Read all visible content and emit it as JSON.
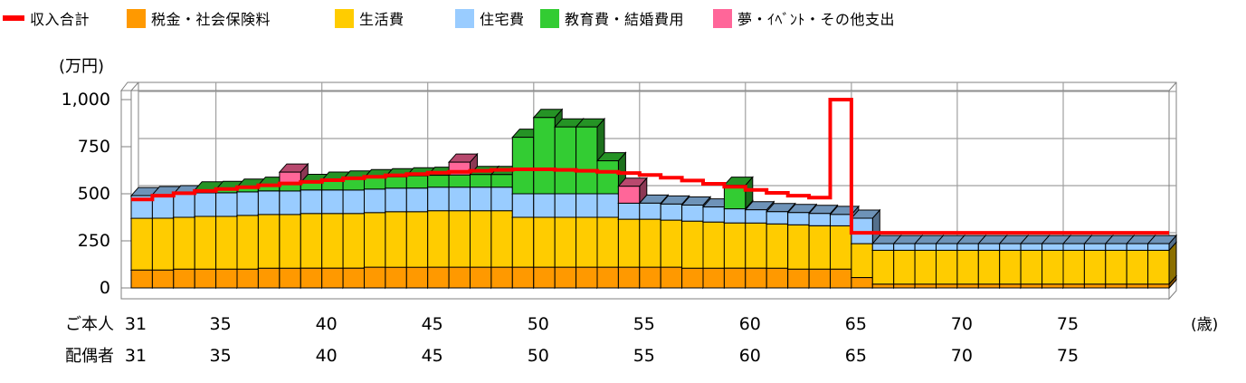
{
  "legend": {
    "items": [
      {
        "key": "income",
        "label": "収入合計",
        "marker": "line",
        "color": "#FF0000",
        "x": 3
      },
      {
        "key": "tax",
        "label": "税金・社会保険料",
        "marker": "square",
        "color": "#FF9900",
        "x": 140
      },
      {
        "key": "living",
        "label": "生活費",
        "marker": "square",
        "color": "#FFCC00",
        "x": 370
      },
      {
        "key": "housing",
        "label": "住宅費",
        "marker": "square",
        "color": "#99CCFF",
        "x": 503
      },
      {
        "key": "education",
        "label": "教育費・結婚費用",
        "marker": "square",
        "color": "#33CC33",
        "x": 597
      },
      {
        "key": "event",
        "label": "夢・ｲﾍﾞﾝﾄ・その他支出",
        "marker": "square",
        "color": "#FF6699",
        "x": 788
      }
    ]
  },
  "chart_data": {
    "type": "bar",
    "subtype": "3d-stacked-column-with-step-line",
    "title": "",
    "unit_label": "(万円)",
    "age_unit_label": "(歳)",
    "ylim": [
      0,
      1000
    ],
    "grid": true,
    "grid_age_step": 5,
    "y_ticks": [
      {
        "value": 1000,
        "label": "1,000"
      },
      {
        "value": 750,
        "label": "750"
      },
      {
        "value": 500,
        "label": "500"
      },
      {
        "value": 250,
        "label": "250"
      },
      {
        "value": 0,
        "label": "0"
      }
    ],
    "x": [
      31,
      32,
      33,
      34,
      35,
      36,
      37,
      38,
      39,
      40,
      41,
      42,
      43,
      44,
      45,
      46,
      47,
      48,
      49,
      50,
      51,
      52,
      53,
      54,
      55,
      56,
      57,
      58,
      59,
      60,
      61,
      62,
      63,
      64,
      65,
      66,
      67,
      68,
      69,
      70,
      71,
      72,
      73,
      74,
      75,
      76,
      77,
      78,
      79
    ],
    "x_axis_rows": [
      {
        "key": "self",
        "label": "ご本人",
        "ticks": [
          "31",
          "35",
          "40",
          "45",
          "50",
          "55",
          "60",
          "65",
          "70",
          "75"
        ],
        "tick_ages": [
          31,
          35,
          40,
          45,
          50,
          55,
          60,
          65,
          70,
          75
        ]
      },
      {
        "key": "spouse",
        "label": "配偶者",
        "ticks": [
          "31",
          "35",
          "40",
          "45",
          "50",
          "55",
          "60",
          "65",
          "70",
          "75"
        ],
        "tick_ages": [
          31,
          35,
          40,
          45,
          50,
          55,
          60,
          65,
          70,
          75
        ]
      }
    ],
    "series": [
      {
        "key": "tax",
        "name": "税金・社会保険料",
        "color": "#FF9900",
        "values": [
          95,
          95,
          100,
          100,
          100,
          100,
          105,
          105,
          105,
          105,
          105,
          110,
          110,
          110,
          110,
          110,
          110,
          110,
          110,
          110,
          110,
          110,
          110,
          110,
          110,
          110,
          105,
          105,
          105,
          105,
          105,
          100,
          100,
          100,
          55,
          20,
          20,
          20,
          20,
          20,
          20,
          20,
          20,
          20,
          20,
          20,
          20,
          20,
          20
        ]
      },
      {
        "key": "living",
        "name": "生活費",
        "color": "#FFCC00",
        "values": [
          275,
          275,
          275,
          280,
          280,
          285,
          285,
          285,
          290,
          290,
          290,
          290,
          295,
          295,
          300,
          300,
          300,
          300,
          265,
          265,
          265,
          265,
          265,
          255,
          255,
          250,
          250,
          245,
          240,
          240,
          235,
          235,
          230,
          230,
          180,
          180,
          180,
          180,
          180,
          180,
          180,
          180,
          180,
          180,
          180,
          180,
          180,
          180,
          180
        ]
      },
      {
        "key": "housing",
        "name": "住宅費",
        "color": "#99CCFF",
        "values": [
          120,
          125,
          125,
          125,
          125,
          125,
          125,
          125,
          125,
          125,
          125,
          125,
          125,
          125,
          125,
          125,
          125,
          125,
          125,
          125,
          125,
          125,
          125,
          85,
          85,
          85,
          85,
          80,
          75,
          70,
          65,
          65,
          65,
          60,
          135,
          35,
          35,
          35,
          35,
          35,
          35,
          35,
          35,
          35,
          35,
          35,
          35,
          35,
          35
        ]
      },
      {
        "key": "education",
        "name": "教育費・結婚費用",
        "color": "#33CC33",
        "values": [
          0,
          0,
          0,
          15,
          18,
          25,
          30,
          33,
          40,
          52,
          58,
          60,
          60,
          65,
          63,
          65,
          67,
          67,
          300,
          405,
          355,
          355,
          175,
          0,
          0,
          0,
          0,
          0,
          125,
          0,
          0,
          0,
          0,
          0,
          0,
          0,
          0,
          0,
          0,
          0,
          0,
          0,
          0,
          0,
          0,
          0,
          0,
          0,
          0
        ]
      },
      {
        "key": "event",
        "name": "夢・ｲﾍﾞﾝﾄ・その他支出",
        "color": "#FF6699",
        "values": [
          0,
          0,
          0,
          0,
          0,
          0,
          0,
          67,
          0,
          0,
          0,
          0,
          0,
          0,
          0,
          68,
          0,
          0,
          0,
          0,
          0,
          0,
          0,
          90,
          0,
          0,
          0,
          0,
          0,
          0,
          0,
          0,
          0,
          0,
          0,
          0,
          0,
          0,
          0,
          0,
          0,
          0,
          0,
          0,
          0,
          0,
          0,
          0,
          0
        ]
      }
    ],
    "line_series": {
      "key": "income",
      "name": "収入合計",
      "color": "#FF0000",
      "values": [
        470,
        490,
        503,
        515,
        525,
        535,
        545,
        555,
        563,
        572,
        582,
        590,
        598,
        605,
        612,
        617,
        622,
        627,
        630,
        630,
        627,
        622,
        617,
        610,
        600,
        585,
        570,
        553,
        537,
        520,
        505,
        490,
        480,
        1000,
        293,
        293,
        293,
        293,
        293,
        293,
        293,
        293,
        293,
        293,
        293,
        293,
        293,
        293,
        293
      ]
    },
    "colors": {
      "grid": "#A0A0A0",
      "frame": "#808080",
      "outline": "#000000",
      "wall_fill": "#FFFFFF"
    }
  }
}
